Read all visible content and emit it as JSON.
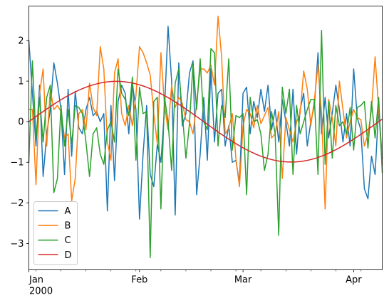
{
  "chart_data": {
    "type": "line",
    "x_axis": {
      "type": "date",
      "start": "2000-01-01",
      "end": "2000-04-09",
      "major_ticks": [
        {
          "date": "2000-01-01",
          "label": "Jan",
          "sublabel": "2000"
        },
        {
          "date": "2000-02-01",
          "label": "Feb"
        },
        {
          "date": "2000-03-01",
          "label": "Mar"
        },
        {
          "date": "2000-04-01",
          "label": "Apr"
        }
      ],
      "minor_ticks": [
        "2000-01-03",
        "2000-01-10",
        "2000-01-17",
        "2000-01-24",
        "2000-01-31",
        "2000-02-07",
        "2000-02-14",
        "2000-02-21",
        "2000-02-28",
        "2000-03-06",
        "2000-03-13",
        "2000-03-20",
        "2000-03-27",
        "2000-04-03"
      ]
    },
    "y_axis": {
      "ylim": [
        -3.65,
        2.85
      ],
      "ticks": [
        2,
        1,
        0,
        -1,
        -2,
        -3
      ],
      "tick_labels": [
        "2",
        "1",
        "0",
        "−1",
        "−2",
        "−3"
      ]
    },
    "grid": false,
    "legend": {
      "position": "lower-left",
      "entries": [
        "A",
        "B",
        "C",
        "D"
      ]
    },
    "series": [
      {
        "name": "A",
        "color": "#1f77b4",
        "values": [
          2.0,
          0.7,
          -0.6,
          0.9,
          -1.35,
          -0.3,
          0.3,
          1.45,
          0.95,
          0.3,
          -1.3,
          0.8,
          -0.85,
          0.75,
          -0.15,
          -0.3,
          0.3,
          0.6,
          0.15,
          0.25,
          0.0,
          0.2,
          -2.2,
          0.4,
          -1.45,
          0.5,
          0.9,
          0.7,
          -0.3,
          0.95,
          0.3,
          -2.4,
          -0.8,
          0.4,
          -1.3,
          -1.6,
          -0.55,
          -1.0,
          0.3,
          2.35,
          1.0,
          -2.3,
          1.45,
          -0.1,
          0.2,
          1.2,
          1.5,
          -1.8,
          -0.8,
          0.6,
          -0.95,
          1.3,
          -0.5,
          0.7,
          0.8,
          -0.6,
          -0.1,
          -1.0,
          -0.95,
          -1.5,
          0.7,
          0.85,
          -0.3,
          0.5,
          0.1,
          0.8,
          0.25,
          0.9,
          -0.2,
          0.3,
          -0.5,
          0.55,
          0.0,
          -0.6,
          0.8,
          -0.8,
          0.3,
          0.7,
          -0.6,
          0.0,
          0.4,
          1.7,
          -0.3,
          0.6,
          -0.4,
          0.2,
          0.9,
          0.3,
          -0.5,
          0.2,
          -0.6,
          1.3,
          0.1,
          -0.2,
          -1.65,
          -1.9,
          -0.85,
          -1.3,
          0.35,
          -0.9
        ]
      },
      {
        "name": "B",
        "color": "#ff7f0e",
        "values": [
          0.3,
          0.3,
          -1.55,
          0.7,
          1.3,
          -0.6,
          0.8,
          0.3,
          0.4,
          0.25,
          -0.4,
          -0.3,
          -1.95,
          -1.4,
          0.2,
          0.3,
          -0.2,
          0.95,
          0.35,
          0.15,
          1.85,
          1.3,
          -0.5,
          -0.95,
          1.2,
          1.55,
          0.2,
          -0.1,
          0.4,
          -0.1,
          0.65,
          1.85,
          1.7,
          1.45,
          1.15,
          0.2,
          -0.55,
          1.7,
          0.4,
          -0.2,
          0.9,
          0.35,
          0.6,
          0.45,
          0.05,
          0.0,
          -0.3,
          0.45,
          1.3,
          1.3,
          1.2,
          1.4,
          0.9,
          2.6,
          1.6,
          -0.3,
          -0.15,
          0.2,
          -0.9,
          -1.6,
          -0.1,
          0.3,
          0.2,
          -0.15,
          0.4,
          -0.05,
          0.15,
          0.35,
          -0.4,
          -0.3,
          0.25,
          -1.4,
          0.1,
          -0.2,
          -0.5,
          0.0,
          0.2,
          1.25,
          0.8,
          -0.1,
          0.55,
          1.4,
          0.2,
          -2.15,
          0.55,
          0.1,
          -0.6,
          1.0,
          0.3,
          -0.4,
          0.0,
          0.3,
          0.1,
          0.05,
          -0.6,
          -0.3,
          0.3,
          1.6,
          0.3,
          -1.05
        ]
      },
      {
        "name": "C",
        "color": "#2ca02c",
        "values": [
          -1.0,
          1.5,
          -0.4,
          0.6,
          -0.5,
          0.6,
          0.9,
          -1.75,
          -1.4,
          0.4,
          -0.6,
          0.3,
          -0.55,
          0.4,
          0.35,
          0.2,
          -0.5,
          -1.35,
          -0.3,
          -0.15,
          -0.8,
          -1.05,
          -0.2,
          0.0,
          -0.5,
          1.3,
          0.7,
          0.55,
          0.15,
          1.1,
          -0.95,
          0.85,
          0.2,
          0.25,
          -3.35,
          0.5,
          0.6,
          -2.15,
          0.6,
          0.0,
          -1.2,
          0.95,
          1.3,
          0.2,
          -0.9,
          -0.05,
          1.45,
          0.3,
          1.55,
          0.0,
          -0.2,
          1.8,
          1.7,
          -0.6,
          0.4,
          0.1,
          1.55,
          -0.7,
          0.15,
          0.1,
          0.2,
          -1.8,
          0.6,
          0.0,
          0.05,
          -0.3,
          -1.2,
          -0.8,
          0.25,
          -0.3,
          -2.8,
          0.85,
          0.2,
          0.8,
          -1.3,
          0.4,
          -0.3,
          0.0,
          0.3,
          0.55,
          0.55,
          -1.3,
          2.25,
          -1.05,
          0.5,
          -0.9,
          0.4,
          -0.1,
          0.0,
          -0.3,
          0.35,
          -0.7,
          0.35,
          0.4,
          0.5,
          -0.65,
          0.5,
          -0.4,
          0.6,
          -1.25
        ]
      },
      {
        "name": "D",
        "color": "#d62728",
        "function": "sine",
        "values": [
          0.0,
          0.063,
          0.127,
          0.189,
          0.251,
          0.312,
          0.372,
          0.43,
          0.486,
          0.541,
          0.593,
          0.643,
          0.69,
          0.735,
          0.776,
          0.815,
          0.85,
          0.881,
          0.909,
          0.933,
          0.953,
          0.969,
          0.982,
          0.99,
          0.994,
          0.994,
          0.99,
          0.982,
          0.969,
          0.953,
          0.933,
          0.909,
          0.881,
          0.85,
          0.815,
          0.776,
          0.735,
          0.69,
          0.643,
          0.593,
          0.541,
          0.486,
          0.43,
          0.372,
          0.312,
          0.251,
          0.189,
          0.127,
          0.063,
          0.0,
          -0.063,
          -0.127,
          -0.189,
          -0.251,
          -0.312,
          -0.372,
          -0.43,
          -0.486,
          -0.541,
          -0.593,
          -0.643,
          -0.69,
          -0.735,
          -0.776,
          -0.815,
          -0.85,
          -0.881,
          -0.909,
          -0.933,
          -0.953,
          -0.969,
          -0.982,
          -0.99,
          -0.994,
          -0.994,
          -0.99,
          -0.982,
          -0.969,
          -0.953,
          -0.933,
          -0.909,
          -0.881,
          -0.85,
          -0.815,
          -0.776,
          -0.735,
          -0.69,
          -0.643,
          -0.593,
          -0.541,
          -0.486,
          -0.43,
          -0.372,
          -0.312,
          -0.251,
          -0.189,
          -0.127,
          -0.063,
          0.0,
          0.063
        ]
      }
    ]
  }
}
